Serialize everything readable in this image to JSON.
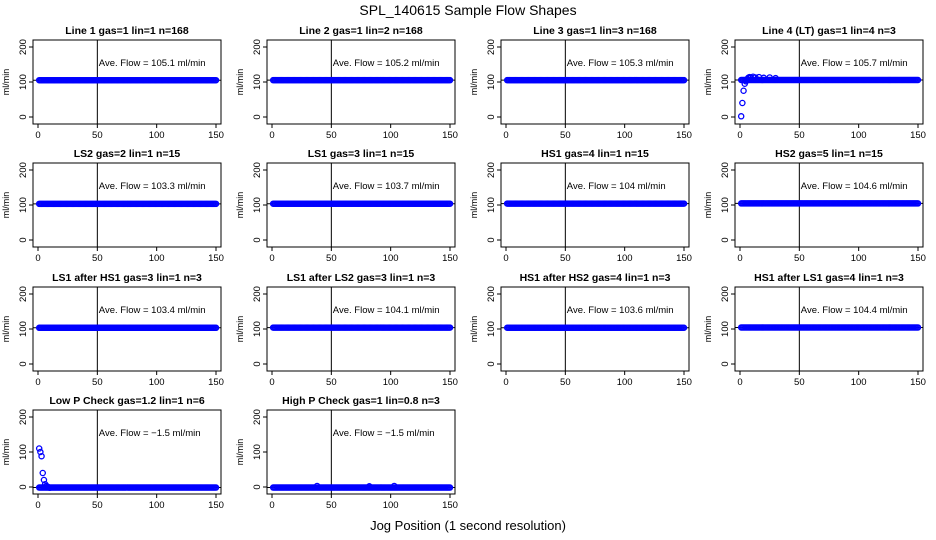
{
  "page": {
    "title": "SPL_140615  Sample Flow Shapes",
    "xlabel": "Jog Position (1 second resolution)"
  },
  "chart_data": [
    {
      "type": "scatter",
      "title": "Line 1 gas=1 lin=1 n=168",
      "ylabel": "ml/min",
      "annotation": "Ave. Flow =  105.1  ml/min",
      "xlim": [
        0,
        150
      ],
      "ylim": [
        -20,
        220
      ],
      "xticks": [
        0,
        50,
        100,
        150
      ],
      "yticks": [
        0,
        100,
        200
      ],
      "vline_x": 50,
      "hline_y": 105.1,
      "point_color": "#0000ff",
      "series": [
        {
          "x_start": 1,
          "x_end": 150,
          "y": 105.1
        }
      ]
    },
    {
      "type": "scatter",
      "title": "Line 2 gas=1 lin=2 n=168",
      "ylabel": "ml/min",
      "annotation": "Ave. Flow =  105.2  ml/min",
      "xlim": [
        0,
        150
      ],
      "ylim": [
        -20,
        220
      ],
      "xticks": [
        0,
        50,
        100,
        150
      ],
      "yticks": [
        0,
        100,
        200
      ],
      "vline_x": 50,
      "hline_y": 105.2,
      "point_color": "#0000ff",
      "series": [
        {
          "x_start": 1,
          "x_end": 150,
          "y": 105.2
        }
      ]
    },
    {
      "type": "scatter",
      "title": "Line 3 gas=1 lin=3 n=168",
      "ylabel": "ml/min",
      "annotation": "Ave. Flow =  105.3  ml/min",
      "xlim": [
        0,
        150
      ],
      "ylim": [
        -20,
        220
      ],
      "xticks": [
        0,
        50,
        100,
        150
      ],
      "yticks": [
        0,
        100,
        200
      ],
      "vline_x": 50,
      "hline_y": 105.3,
      "point_color": "#0000ff",
      "series": [
        {
          "x_start": 1,
          "x_end": 150,
          "y": 105.3
        }
      ]
    },
    {
      "type": "scatter",
      "title": "Line 4 (LT) gas=1 lin=4 n=3",
      "ylabel": "ml/min",
      "annotation": "Ave. Flow =  105.7  ml/min",
      "xlim": [
        0,
        150
      ],
      "ylim": [
        -20,
        220
      ],
      "xticks": [
        0,
        50,
        100,
        150
      ],
      "yticks": [
        0,
        100,
        200
      ],
      "vline_x": 50,
      "hline_y": 105.7,
      "point_color": "#0000ff",
      "series": [
        {
          "x_start": 1,
          "x_end": 150,
          "y": 105.7
        }
      ],
      "points": [
        [
          1,
          2
        ],
        [
          2,
          40
        ],
        [
          3,
          75
        ],
        [
          4,
          95
        ],
        [
          5,
          102
        ],
        [
          6,
          108
        ],
        [
          7,
          112
        ],
        [
          8,
          114
        ],
        [
          9,
          113
        ],
        [
          11,
          115
        ],
        [
          13,
          113
        ],
        [
          16,
          114
        ],
        [
          20,
          112
        ],
        [
          25,
          113
        ],
        [
          30,
          111
        ]
      ]
    },
    {
      "type": "scatter",
      "title": "LS2 gas=2 lin=1 n=15",
      "ylabel": "ml/min",
      "annotation": "Ave. Flow =  103.3  ml/min",
      "xlim": [
        0,
        150
      ],
      "ylim": [
        -20,
        220
      ],
      "xticks": [
        0,
        50,
        100,
        150
      ],
      "yticks": [
        0,
        100,
        200
      ],
      "vline_x": 50,
      "hline_y": 103.3,
      "point_color": "#0000ff",
      "series": [
        {
          "x_start": 1,
          "x_end": 150,
          "y": 103.3
        }
      ]
    },
    {
      "type": "scatter",
      "title": "LS1 gas=3 lin=1 n=15",
      "ylabel": "ml/min",
      "annotation": "Ave. Flow =  103.7  ml/min",
      "xlim": [
        0,
        150
      ],
      "ylim": [
        -20,
        220
      ],
      "xticks": [
        0,
        50,
        100,
        150
      ],
      "yticks": [
        0,
        100,
        200
      ],
      "vline_x": 50,
      "hline_y": 103.7,
      "point_color": "#0000ff",
      "series": [
        {
          "x_start": 1,
          "x_end": 150,
          "y": 103.7
        }
      ]
    },
    {
      "type": "scatter",
      "title": "HS1 gas=4 lin=1 n=15",
      "ylabel": "ml/min",
      "annotation": "Ave. Flow =  104  ml/min",
      "xlim": [
        0,
        150
      ],
      "ylim": [
        -20,
        220
      ],
      "xticks": [
        0,
        50,
        100,
        150
      ],
      "yticks": [
        0,
        100,
        200
      ],
      "vline_x": 50,
      "hline_y": 104,
      "point_color": "#0000ff",
      "series": [
        {
          "x_start": 1,
          "x_end": 150,
          "y": 104
        }
      ]
    },
    {
      "type": "scatter",
      "title": "HS2 gas=5 lin=1 n=15",
      "ylabel": "ml/min",
      "annotation": "Ave. Flow =  104.6  ml/min",
      "xlim": [
        0,
        150
      ],
      "ylim": [
        -20,
        220
      ],
      "xticks": [
        0,
        50,
        100,
        150
      ],
      "yticks": [
        0,
        100,
        200
      ],
      "vline_x": 50,
      "hline_y": 104.6,
      "point_color": "#0000ff",
      "series": [
        {
          "x_start": 1,
          "x_end": 150,
          "y": 104.6
        }
      ]
    },
    {
      "type": "scatter",
      "title": "LS1 after HS1 gas=3 lin=1 n=3",
      "ylabel": "ml/min",
      "annotation": "Ave. Flow =  103.4  ml/min",
      "xlim": [
        0,
        150
      ],
      "ylim": [
        -20,
        220
      ],
      "xticks": [
        0,
        50,
        100,
        150
      ],
      "yticks": [
        0,
        100,
        200
      ],
      "vline_x": 50,
      "hline_y": 103.4,
      "point_color": "#0000ff",
      "series": [
        {
          "x_start": 1,
          "x_end": 150,
          "y": 103.4
        }
      ]
    },
    {
      "type": "scatter",
      "title": "LS1 after LS2 gas=3 lin=1 n=3",
      "ylabel": "ml/min",
      "annotation": "Ave. Flow =  104.1  ml/min",
      "xlim": [
        0,
        150
      ],
      "ylim": [
        -20,
        220
      ],
      "xticks": [
        0,
        50,
        100,
        150
      ],
      "yticks": [
        0,
        100,
        200
      ],
      "vline_x": 50,
      "hline_y": 104.1,
      "point_color": "#0000ff",
      "series": [
        {
          "x_start": 1,
          "x_end": 150,
          "y": 104.1
        }
      ]
    },
    {
      "type": "scatter",
      "title": "HS1 after HS2 gas=4 lin=1 n=3",
      "ylabel": "ml/min",
      "annotation": "Ave. Flow =  103.6  ml/min",
      "xlim": [
        0,
        150
      ],
      "ylim": [
        -20,
        220
      ],
      "xticks": [
        0,
        50,
        100,
        150
      ],
      "yticks": [
        0,
        100,
        200
      ],
      "vline_x": 50,
      "hline_y": 103.6,
      "point_color": "#0000ff",
      "series": [
        {
          "x_start": 1,
          "x_end": 150,
          "y": 103.6
        }
      ]
    },
    {
      "type": "scatter",
      "title": "HS1 after LS1 gas=4 lin=1 n=3",
      "ylabel": "ml/min",
      "annotation": "Ave. Flow =  104.4  ml/min",
      "xlim": [
        0,
        150
      ],
      "ylim": [
        -20,
        220
      ],
      "xticks": [
        0,
        50,
        100,
        150
      ],
      "yticks": [
        0,
        100,
        200
      ],
      "vline_x": 50,
      "hline_y": 104.4,
      "point_color": "#0000ff",
      "series": [
        {
          "x_start": 1,
          "x_end": 150,
          "y": 104.4
        }
      ]
    },
    {
      "type": "scatter",
      "title": "Low P Check gas=1.2 lin=1 n=6",
      "ylabel": "ml/min",
      "annotation": "Ave. Flow =  −1.5  ml/min",
      "xlim": [
        0,
        150
      ],
      "ylim": [
        -20,
        220
      ],
      "xticks": [
        0,
        50,
        100,
        150
      ],
      "yticks": [
        0,
        100,
        200
      ],
      "vline_x": 50,
      "hline_y": -1.5,
      "point_color": "#0000ff",
      "series": [
        {
          "x_start": 1,
          "x_end": 150,
          "y": -1.5
        }
      ],
      "points": [
        [
          1,
          110
        ],
        [
          2,
          100
        ],
        [
          3,
          88
        ],
        [
          4,
          40
        ],
        [
          5,
          20
        ],
        [
          6,
          8
        ],
        [
          7,
          3
        ],
        [
          8,
          1
        ],
        [
          9,
          -1
        ],
        [
          10,
          -2
        ]
      ]
    },
    {
      "type": "scatter",
      "title": "High P Check gas=1 lin=0.8 n=3",
      "ylabel": "ml/min",
      "annotation": "Ave. Flow =  −1.5  ml/min",
      "xlim": [
        0,
        150
      ],
      "ylim": [
        -20,
        220
      ],
      "xticks": [
        0,
        50,
        100,
        150
      ],
      "yticks": [
        0,
        100,
        200
      ],
      "vline_x": 50,
      "hline_y": -1.5,
      "point_color": "#0000ff",
      "series": [
        {
          "x_start": 1,
          "x_end": 150,
          "y": -1.5
        }
      ],
      "points": [
        [
          38,
          3
        ],
        [
          82,
          2
        ],
        [
          103,
          3
        ]
      ]
    }
  ]
}
